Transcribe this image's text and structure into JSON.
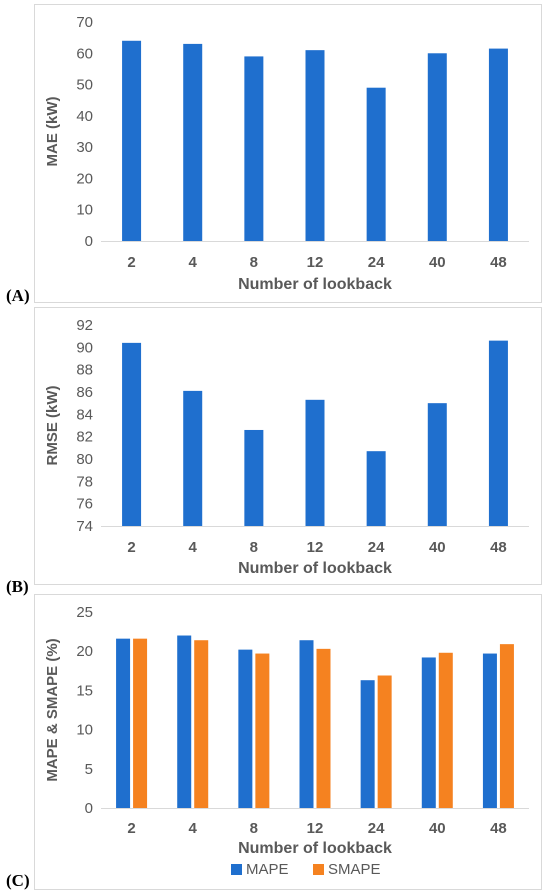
{
  "panels": [
    {
      "label": "(A)"
    },
    {
      "label": "(B)"
    },
    {
      "label": "(C)"
    }
  ],
  "colors": {
    "mape": "#1f6fce",
    "smape": "#f58220",
    "bar": "#1f6fce",
    "grid": "#d9d9d9",
    "tick": "#595959"
  },
  "chart_data": [
    {
      "type": "bar",
      "categories": [
        "2",
        "4",
        "8",
        "12",
        "24",
        "40",
        "48"
      ],
      "values": [
        64,
        63,
        59,
        61,
        49,
        60,
        61.5
      ],
      "title": "",
      "xlabel": "Number of lookback",
      "ylabel": "MAE (kW)",
      "ylim": [
        0,
        70
      ],
      "yticks": [
        0,
        10,
        20,
        30,
        40,
        50,
        60,
        70
      ],
      "grid": false
    },
    {
      "type": "bar",
      "categories": [
        "2",
        "4",
        "8",
        "12",
        "24",
        "40",
        "48"
      ],
      "values": [
        90.4,
        86.1,
        82.6,
        85.3,
        80.7,
        85.0,
        90.6
      ],
      "title": "",
      "xlabel": "Number of lookback",
      "ylabel": "RMSE (kW)",
      "ylim": [
        74,
        92
      ],
      "yticks": [
        74,
        76,
        78,
        80,
        82,
        84,
        86,
        88,
        90,
        92
      ],
      "grid": false
    },
    {
      "type": "bar",
      "categories": [
        "2",
        "4",
        "8",
        "12",
        "24",
        "40",
        "48"
      ],
      "series": [
        {
          "name": "MAPE",
          "values": [
            21.6,
            22.0,
            20.2,
            21.4,
            16.3,
            19.2,
            19.7
          ]
        },
        {
          "name": "SMAPE",
          "values": [
            21.6,
            21.4,
            19.7,
            20.3,
            16.9,
            19.8,
            20.9
          ]
        }
      ],
      "title": "",
      "xlabel": "Number of lookback",
      "ylabel": "MAPE & SMAPE (%)",
      "ylim": [
        0,
        25
      ],
      "yticks": [
        0,
        5,
        10,
        15,
        20,
        25
      ],
      "grid": false,
      "legend": "bottom"
    }
  ]
}
